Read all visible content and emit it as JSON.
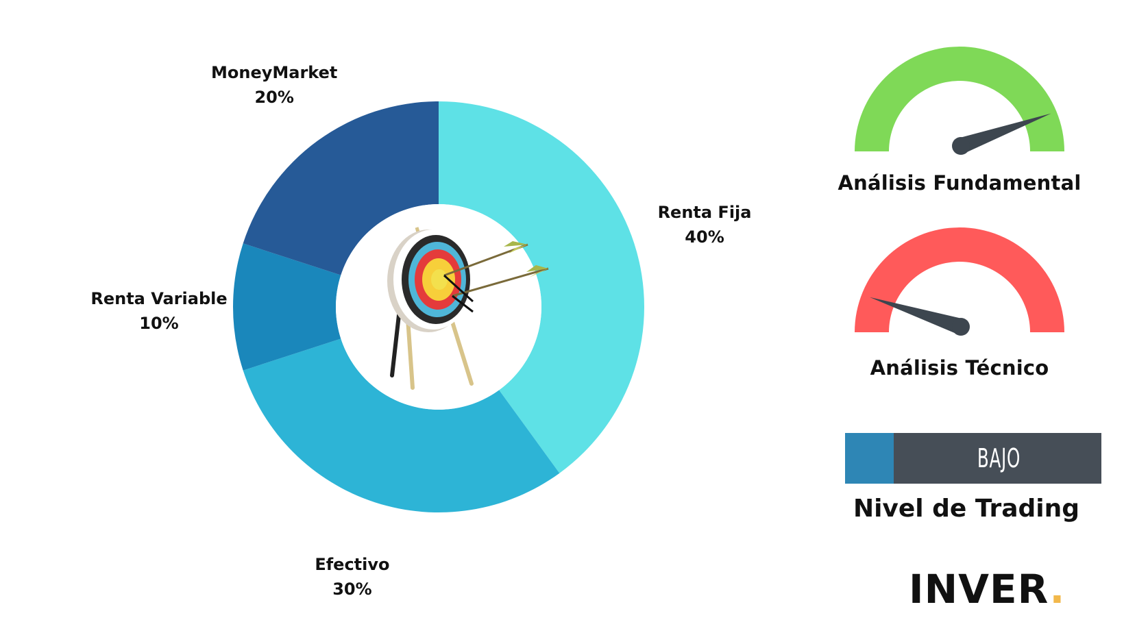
{
  "chart_data": [
    {
      "type": "pie",
      "variant": "donut",
      "slices": [
        {
          "label": "Renta Fija",
          "percent_label": "40%",
          "value": 40,
          "color": "#5ee1e6"
        },
        {
          "label": "Efectivo",
          "percent_label": "30%",
          "value": 30,
          "color": "#2db4d6"
        },
        {
          "label": "Renta Variable",
          "percent_label": "10%",
          "value": 10,
          "color": "#1a87bb"
        },
        {
          "label": "MoneyMarket",
          "percent_label": "20%",
          "value": 20,
          "color": "#265a97"
        }
      ],
      "center_image": "archery-target-with-arrows"
    }
  ],
  "gauges": {
    "fundamental": {
      "title": "Análisis Fundamental",
      "color": "#7fd957",
      "needle_level": 0.89
    },
    "tecnico": {
      "title": "Análisis Técnico",
      "color": "#ff5a5a",
      "needle_level": 0.1
    },
    "needle_color": "#3d464f"
  },
  "trading": {
    "level": "BAJO",
    "title": "Nivel de Trading",
    "fill_fraction": 0.19,
    "fill_color": "#2e86b5",
    "bar_color": "#464e57"
  },
  "brand": {
    "name": "INVER",
    "dot": ".",
    "dot_color": "#f2b84b"
  }
}
